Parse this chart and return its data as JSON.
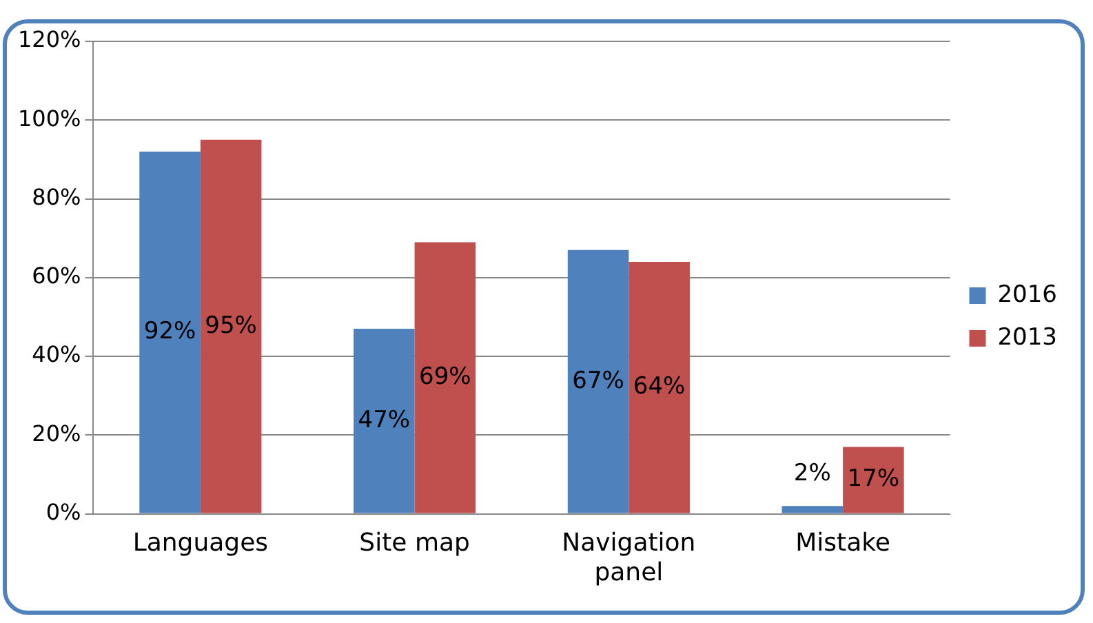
{
  "chart_data": {
    "type": "bar",
    "categories": [
      "Languages",
      "Site map",
      "Navigation panel",
      "Mistake"
    ],
    "series": [
      {
        "name": "2016",
        "color": "#4f81bd",
        "values": [
          92,
          47,
          67,
          2
        ],
        "value_labels": [
          "92%",
          "47%",
          "67%",
          "2%"
        ]
      },
      {
        "name": "2013",
        "color": "#c0504d",
        "values": [
          95,
          69,
          64,
          17
        ],
        "value_labels": [
          "95%",
          "69%",
          "64%",
          "17%"
        ]
      }
    ],
    "ylim": [
      0,
      120
    ],
    "yticks": [
      {
        "value": 0,
        "label": "0%"
      },
      {
        "value": 20,
        "label": "20%"
      },
      {
        "value": 40,
        "label": "40%"
      },
      {
        "value": 60,
        "label": "60%"
      },
      {
        "value": 80,
        "label": "80%"
      },
      {
        "value": 100,
        "label": "100%"
      },
      {
        "value": 120,
        "label": "120%"
      }
    ],
    "grid": "y",
    "legend": "right"
  }
}
